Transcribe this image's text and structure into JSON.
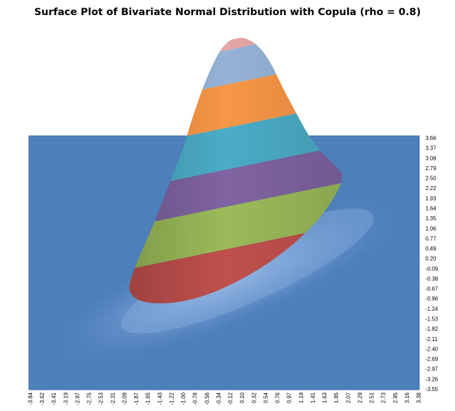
{
  "chart_data": {
    "type": "surface",
    "title": "Surface Plot of Bivariate Normal Distribution with Copula (rho = 0.8)",
    "rho": 0.8,
    "x_ticks": [
      "-3.84",
      "-3.62",
      "-3.41",
      "-3.19",
      "-2.97",
      "-2.75",
      "-2.53",
      "-2.31",
      "-2.09",
      "-1.87",
      "-1.65",
      "-1.43",
      "-1.22",
      "-1.00",
      "-0.78",
      "-0.56",
      "-0.34",
      "-0.12",
      "0.10",
      "0.32",
      "0.54",
      "0.76",
      "0.97",
      "1.19",
      "1.41",
      "1.63",
      "1.85",
      "2.07",
      "2.29",
      "2.51",
      "2.73",
      "2.95",
      "3.16",
      "3.38"
    ],
    "y_ticks": [
      "3.66",
      "3.37",
      "3.08",
      "2.79",
      "2.50",
      "2.22",
      "1.93",
      "1.64",
      "1.35",
      "1.06",
      "0.77",
      "0.49",
      "0.20",
      "-0.09",
      "-0.38",
      "-0.67",
      "-0.96",
      "-1.24",
      "-1.53",
      "-1.82",
      "-2.11",
      "-2.40",
      "-2.69",
      "-2.97",
      "-3.26",
      "-3.55"
    ],
    "x_range": [
      -3.84,
      3.38
    ],
    "y_range": [
      -3.55,
      3.66
    ],
    "band_colors": [
      "#c0504d",
      "#9bbb59",
      "#8064a2",
      "#4bacc6",
      "#f79646",
      "#95b3d7",
      "#e6a6a6"
    ],
    "floor_color": "#4f81bd",
    "grid": true,
    "legend": "none"
  }
}
